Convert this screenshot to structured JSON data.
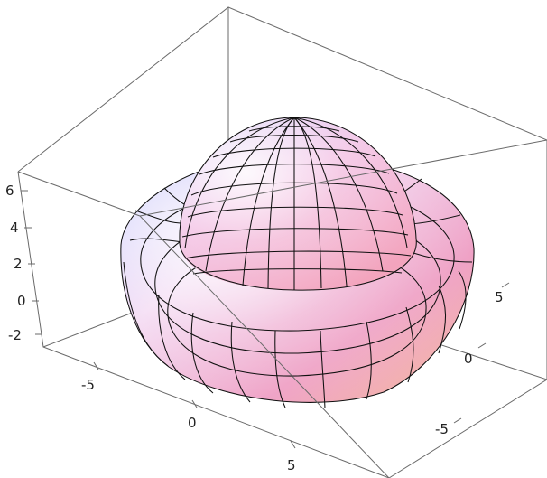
{
  "chart_data": {
    "type": "surface3d",
    "title": "",
    "axes": {
      "x": {
        "label": "",
        "ticks": [
          -5,
          0,
          5
        ],
        "tick_labels": [
          "-5",
          "0",
          "5"
        ],
        "range": [
          -8,
          8
        ]
      },
      "y": {
        "label": "",
        "ticks": [
          -5,
          0,
          5
        ],
        "tick_labels": [
          "-5",
          "0",
          "5"
        ],
        "range": [
          -8,
          8
        ]
      },
      "z": {
        "label": "",
        "ticks": [
          -2,
          0,
          2,
          4,
          6
        ],
        "tick_labels": [
          "-2",
          "0",
          "2",
          "4",
          "6"
        ],
        "range": [
          -2.6,
          6.6
        ]
      }
    },
    "surfaces": [
      {
        "name": "",
        "shape": "torus",
        "major_radius": 5.6,
        "minor_radius": 2.3,
        "center_z": 0
      },
      {
        "name": "",
        "shape": "hemisphere",
        "radius": 4.4,
        "center_z": 1.6
      }
    ],
    "box": true,
    "mesh": true,
    "colors": {
      "pink": "#e8a7c7",
      "blue": "#9fb8f2",
      "peach": "#f4c7a6",
      "mesh": "#101010"
    }
  }
}
